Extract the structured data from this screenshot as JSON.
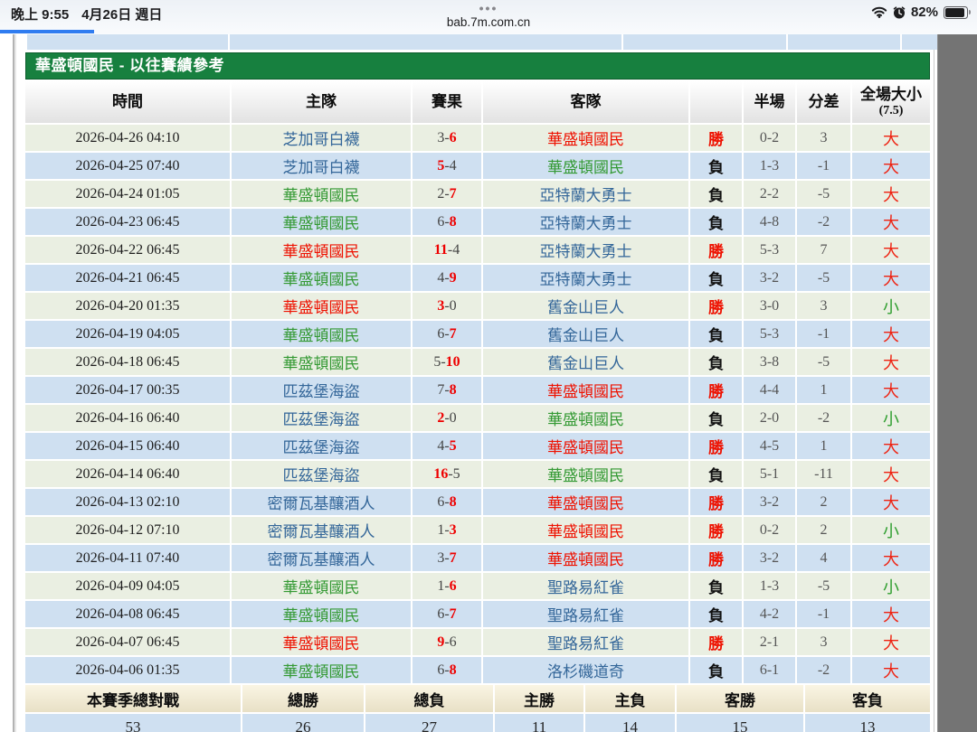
{
  "status_bar": {
    "time": "晚上 9:55",
    "date": "4月26日 週日",
    "dots": "•••",
    "url": "bab.7m.com.cn",
    "battery_percent": "82%"
  },
  "colors": {
    "panel_green": "#17803f",
    "row_ivory": "#eaefe2",
    "row_blue": "#cfe0f1",
    "team_blue": "#336699",
    "team_green": "#339933",
    "team_red": "#ee1100",
    "win_red": "#ee0000",
    "ou_small_green": "#2e9e2e",
    "progress_blue": "#2f7cf0"
  },
  "panel": {
    "title": "華盛頓國民 - 以往賽績參考",
    "columns": [
      "時間",
      "主隊",
      "賽果",
      "客隊",
      "",
      "半場",
      "分差"
    ],
    "ou_header": {
      "line1": "全場大小",
      "line2": "(7.5)"
    },
    "rows": [
      {
        "time": "2026-04-26 04:10",
        "home": "芝加哥白襪",
        "home_color": "blue",
        "score_home": "3",
        "score_away": "6",
        "winner": "away",
        "away": "華盛頓國民",
        "away_color": "red",
        "result": "勝",
        "half": "0-2",
        "diff": "3",
        "over_under": "大"
      },
      {
        "time": "2026-04-25 07:40",
        "home": "芝加哥白襪",
        "home_color": "blue",
        "score_home": "5",
        "score_away": "4",
        "winner": "home",
        "away": "華盛頓國民",
        "away_color": "green",
        "result": "負",
        "half": "1-3",
        "diff": "-1",
        "over_under": "大"
      },
      {
        "time": "2026-04-24 01:05",
        "home": "華盛頓國民",
        "home_color": "green",
        "score_home": "2",
        "score_away": "7",
        "winner": "away",
        "away": "亞特蘭大勇士",
        "away_color": "blue",
        "result": "負",
        "half": "2-2",
        "diff": "-5",
        "over_under": "大"
      },
      {
        "time": "2026-04-23 06:45",
        "home": "華盛頓國民",
        "home_color": "green",
        "score_home": "6",
        "score_away": "8",
        "winner": "away",
        "away": "亞特蘭大勇士",
        "away_color": "blue",
        "result": "負",
        "half": "4-8",
        "diff": "-2",
        "over_under": "大"
      },
      {
        "time": "2026-04-22 06:45",
        "home": "華盛頓國民",
        "home_color": "red",
        "score_home": "11",
        "score_away": "4",
        "winner": "home",
        "away": "亞特蘭大勇士",
        "away_color": "blue",
        "result": "勝",
        "half": "5-3",
        "diff": "7",
        "over_under": "大"
      },
      {
        "time": "2026-04-21 06:45",
        "home": "華盛頓國民",
        "home_color": "green",
        "score_home": "4",
        "score_away": "9",
        "winner": "away",
        "away": "亞特蘭大勇士",
        "away_color": "blue",
        "result": "負",
        "half": "3-2",
        "diff": "-5",
        "over_under": "大"
      },
      {
        "time": "2026-04-20 01:35",
        "home": "華盛頓國民",
        "home_color": "red",
        "score_home": "3",
        "score_away": "0",
        "winner": "home",
        "away": "舊金山巨人",
        "away_color": "blue",
        "result": "勝",
        "half": "3-0",
        "diff": "3",
        "over_under": "小"
      },
      {
        "time": "2026-04-19 04:05",
        "home": "華盛頓國民",
        "home_color": "green",
        "score_home": "6",
        "score_away": "7",
        "winner": "away",
        "away": "舊金山巨人",
        "away_color": "blue",
        "result": "負",
        "half": "5-3",
        "diff": "-1",
        "over_under": "大"
      },
      {
        "time": "2026-04-18 06:45",
        "home": "華盛頓國民",
        "home_color": "green",
        "score_home": "5",
        "score_away": "10",
        "winner": "away",
        "away": "舊金山巨人",
        "away_color": "blue",
        "result": "負",
        "half": "3-8",
        "diff": "-5",
        "over_under": "大"
      },
      {
        "time": "2026-04-17 00:35",
        "home": "匹茲堡海盜",
        "home_color": "blue",
        "score_home": "7",
        "score_away": "8",
        "winner": "away",
        "away": "華盛頓國民",
        "away_color": "red",
        "result": "勝",
        "half": "4-4",
        "diff": "1",
        "over_under": "大"
      },
      {
        "time": "2026-04-16 06:40",
        "home": "匹茲堡海盜",
        "home_color": "blue",
        "score_home": "2",
        "score_away": "0",
        "winner": "home",
        "away": "華盛頓國民",
        "away_color": "green",
        "result": "負",
        "half": "2-0",
        "diff": "-2",
        "over_under": "小"
      },
      {
        "time": "2026-04-15 06:40",
        "home": "匹茲堡海盜",
        "home_color": "blue",
        "score_home": "4",
        "score_away": "5",
        "winner": "away",
        "away": "華盛頓國民",
        "away_color": "red",
        "result": "勝",
        "half": "4-5",
        "diff": "1",
        "over_under": "大"
      },
      {
        "time": "2026-04-14 06:40",
        "home": "匹茲堡海盜",
        "home_color": "blue",
        "score_home": "16",
        "score_away": "5",
        "winner": "home",
        "away": "華盛頓國民",
        "away_color": "green",
        "result": "負",
        "half": "5-1",
        "diff": "-11",
        "over_under": "大"
      },
      {
        "time": "2026-04-13 02:10",
        "home": "密爾瓦基釀酒人",
        "home_color": "blue",
        "score_home": "6",
        "score_away": "8",
        "winner": "away",
        "away": "華盛頓國民",
        "away_color": "red",
        "result": "勝",
        "half": "3-2",
        "diff": "2",
        "over_under": "大"
      },
      {
        "time": "2026-04-12 07:10",
        "home": "密爾瓦基釀酒人",
        "home_color": "blue",
        "score_home": "1",
        "score_away": "3",
        "winner": "away",
        "away": "華盛頓國民",
        "away_color": "red",
        "result": "勝",
        "half": "0-2",
        "diff": "2",
        "over_under": "小"
      },
      {
        "time": "2026-04-11 07:40",
        "home": "密爾瓦基釀酒人",
        "home_color": "blue",
        "score_home": "3",
        "score_away": "7",
        "winner": "away",
        "away": "華盛頓國民",
        "away_color": "red",
        "result": "勝",
        "half": "3-2",
        "diff": "4",
        "over_under": "大"
      },
      {
        "time": "2026-04-09 04:05",
        "home": "華盛頓國民",
        "home_color": "green",
        "score_home": "1",
        "score_away": "6",
        "winner": "away",
        "away": "聖路易紅雀",
        "away_color": "blue",
        "result": "負",
        "half": "1-3",
        "diff": "-5",
        "over_under": "小"
      },
      {
        "time": "2026-04-08 06:45",
        "home": "華盛頓國民",
        "home_color": "green",
        "score_home": "6",
        "score_away": "7",
        "winner": "away",
        "away": "聖路易紅雀",
        "away_color": "blue",
        "result": "負",
        "half": "4-2",
        "diff": "-1",
        "over_under": "大"
      },
      {
        "time": "2026-04-07 06:45",
        "home": "華盛頓國民",
        "home_color": "red",
        "score_home": "9",
        "score_away": "6",
        "winner": "home",
        "away": "聖路易紅雀",
        "away_color": "blue",
        "result": "勝",
        "half": "2-1",
        "diff": "3",
        "over_under": "大"
      },
      {
        "time": "2026-04-06 01:35",
        "home": "華盛頓國民",
        "home_color": "green",
        "score_home": "6",
        "score_away": "8",
        "winner": "away",
        "away": "洛杉磯道奇",
        "away_color": "blue",
        "result": "負",
        "half": "6-1",
        "diff": "-2",
        "over_under": "大"
      }
    ],
    "summary": {
      "headers": [
        "本賽季總對戰",
        "總勝",
        "總負",
        "主勝",
        "主負",
        "客勝",
        "客負"
      ],
      "values": [
        "53",
        "26",
        "27",
        "11",
        "14",
        "15",
        "13"
      ]
    }
  }
}
